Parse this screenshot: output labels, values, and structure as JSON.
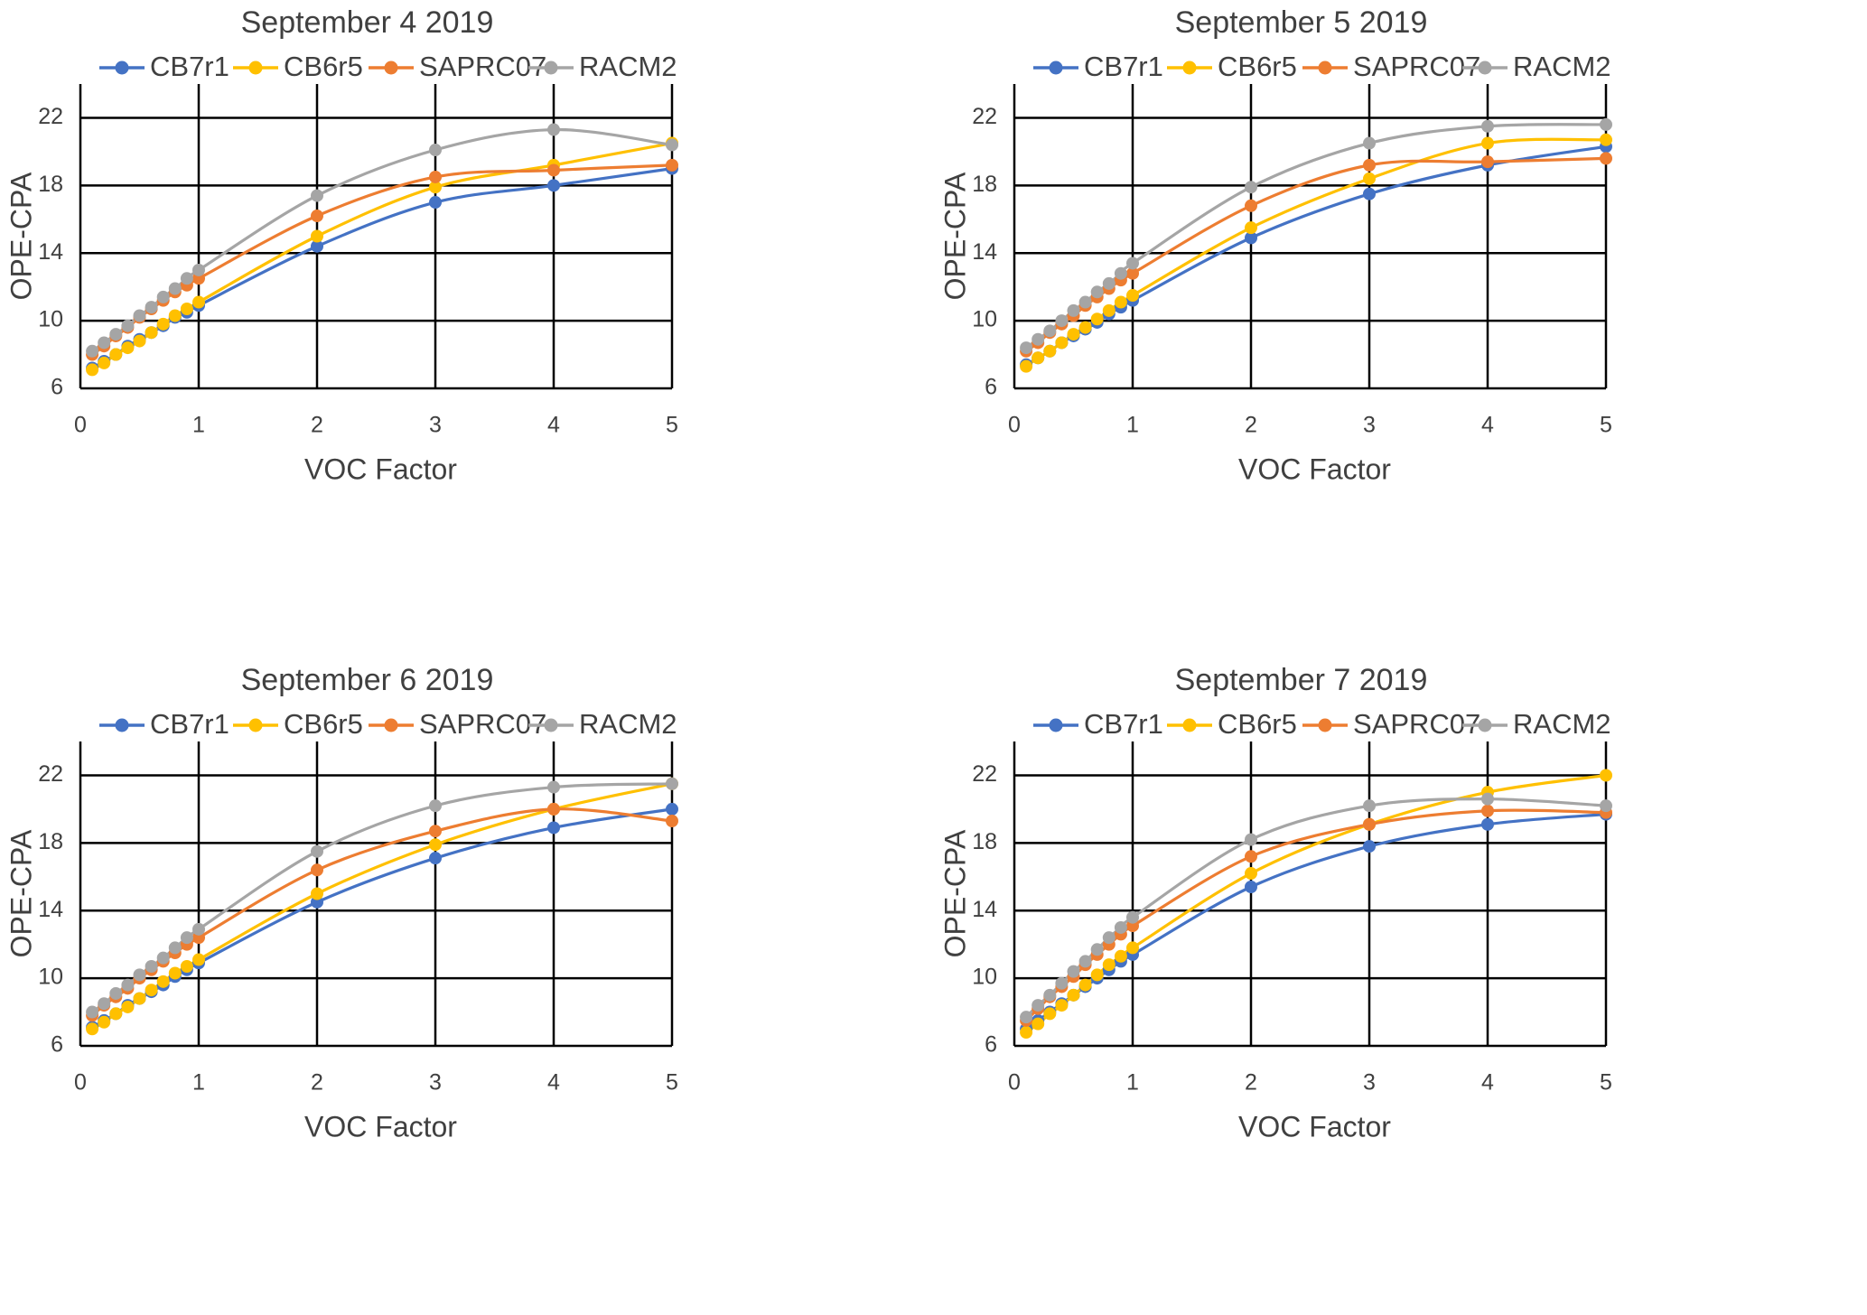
{
  "chart_data": [
    {
      "type": "line",
      "title": "September 4 2019",
      "xlabel": "VOC Factor",
      "ylabel": "OPE-CPA",
      "xlim": [
        0,
        5
      ],
      "ylim": [
        6,
        24
      ],
      "xticks": [
        0,
        1,
        2,
        3,
        4,
        5
      ],
      "yticks": [
        6,
        10,
        14,
        18,
        22
      ],
      "legend": "top",
      "grid": true,
      "x": [
        0.1,
        0.2,
        0.3,
        0.4,
        0.5,
        0.6,
        0.7,
        0.8,
        0.9,
        1,
        2,
        3,
        4,
        5
      ],
      "series": [
        {
          "name": "CB7r1",
          "color": "#4472C4",
          "values": [
            7.2,
            7.6,
            8.0,
            8.5,
            8.9,
            9.3,
            9.7,
            10.2,
            10.5,
            10.9,
            14.4,
            17.0,
            18.0,
            19.0
          ]
        },
        {
          "name": "CB6r5",
          "color": "#FFC000",
          "values": [
            7.1,
            7.5,
            8.0,
            8.4,
            8.8,
            9.3,
            9.8,
            10.3,
            10.7,
            11.1,
            15.0,
            17.9,
            19.2,
            20.5
          ]
        },
        {
          "name": "SAPRC07",
          "color": "#ED7D31",
          "values": [
            8.0,
            8.5,
            9.1,
            9.6,
            10.2,
            10.7,
            11.2,
            11.7,
            12.1,
            12.5,
            16.2,
            18.5,
            18.9,
            19.2
          ]
        },
        {
          "name": "RACM2",
          "color": "#A5A5A5",
          "values": [
            8.2,
            8.7,
            9.2,
            9.7,
            10.3,
            10.8,
            11.4,
            11.9,
            12.5,
            13.0,
            17.4,
            20.1,
            21.3,
            20.4
          ]
        }
      ]
    },
    {
      "type": "line",
      "title": "September 5 2019",
      "xlabel": "VOC Factor",
      "ylabel": "OPE-CPA",
      "xlim": [
        0,
        5
      ],
      "ylim": [
        6,
        24
      ],
      "xticks": [
        0,
        1,
        2,
        3,
        4,
        5
      ],
      "yticks": [
        6,
        10,
        14,
        18,
        22
      ],
      "legend": "top",
      "grid": true,
      "x": [
        0.1,
        0.2,
        0.3,
        0.4,
        0.5,
        0.6,
        0.7,
        0.8,
        0.9,
        1,
        2,
        3,
        4,
        5
      ],
      "series": [
        {
          "name": "CB7r1",
          "color": "#4472C4",
          "values": [
            7.4,
            7.8,
            8.2,
            8.7,
            9.1,
            9.5,
            9.9,
            10.4,
            10.8,
            11.2,
            14.9,
            17.5,
            19.2,
            20.3
          ]
        },
        {
          "name": "CB6r5",
          "color": "#FFC000",
          "values": [
            7.3,
            7.8,
            8.2,
            8.7,
            9.2,
            9.6,
            10.1,
            10.6,
            11.1,
            11.5,
            15.5,
            18.4,
            20.5,
            20.7
          ]
        },
        {
          "name": "SAPRC07",
          "color": "#ED7D31",
          "values": [
            8.2,
            8.7,
            9.3,
            9.8,
            10.3,
            10.9,
            11.4,
            11.9,
            12.4,
            12.8,
            16.8,
            19.2,
            19.4,
            19.6
          ]
        },
        {
          "name": "RACM2",
          "color": "#A5A5A5",
          "values": [
            8.4,
            8.9,
            9.4,
            10.0,
            10.6,
            11.1,
            11.7,
            12.2,
            12.8,
            13.4,
            17.9,
            20.5,
            21.5,
            21.6
          ]
        }
      ]
    },
    {
      "type": "line",
      "title": "September 6 2019",
      "xlabel": "VOC Factor",
      "ylabel": "OPE-CPA",
      "xlim": [
        0,
        5
      ],
      "ylim": [
        6,
        24
      ],
      "xticks": [
        0,
        1,
        2,
        3,
        4,
        5
      ],
      "yticks": [
        6,
        10,
        14,
        18,
        22
      ],
      "legend": "top",
      "grid": true,
      "x": [
        0.1,
        0.2,
        0.3,
        0.4,
        0.5,
        0.6,
        0.7,
        0.8,
        0.9,
        1,
        2,
        3,
        4,
        5
      ],
      "series": [
        {
          "name": "CB7r1",
          "color": "#4472C4",
          "values": [
            7.1,
            7.5,
            7.9,
            8.4,
            8.8,
            9.2,
            9.6,
            10.1,
            10.5,
            10.9,
            14.5,
            17.1,
            18.9,
            20.0
          ]
        },
        {
          "name": "CB6r5",
          "color": "#FFC000",
          "values": [
            7.0,
            7.4,
            7.9,
            8.3,
            8.8,
            9.3,
            9.8,
            10.3,
            10.7,
            11.1,
            15.0,
            17.9,
            20.0,
            21.5
          ]
        },
        {
          "name": "SAPRC07",
          "color": "#ED7D31",
          "values": [
            7.8,
            8.4,
            8.9,
            9.4,
            10.0,
            10.5,
            11.0,
            11.5,
            12.0,
            12.4,
            16.4,
            18.7,
            20.0,
            19.3
          ]
        },
        {
          "name": "RACM2",
          "color": "#A5A5A5",
          "values": [
            8.0,
            8.5,
            9.1,
            9.6,
            10.2,
            10.7,
            11.2,
            11.8,
            12.4,
            12.9,
            17.5,
            20.2,
            21.3,
            21.5
          ]
        }
      ]
    },
    {
      "type": "line",
      "title": "September 7 2019",
      "xlabel": "VOC Factor",
      "ylabel": "OPE-CPA",
      "xlim": [
        0,
        5
      ],
      "ylim": [
        6,
        24
      ],
      "xticks": [
        0,
        1,
        2,
        3,
        4,
        5
      ],
      "yticks": [
        6,
        10,
        14,
        18,
        22
      ],
      "legend": "top",
      "grid": true,
      "x": [
        0.1,
        0.2,
        0.3,
        0.4,
        0.5,
        0.6,
        0.7,
        0.8,
        0.9,
        1,
        2,
        3,
        4,
        5
      ],
      "series": [
        {
          "name": "CB7r1",
          "color": "#4472C4",
          "values": [
            7.0,
            7.5,
            8.0,
            8.5,
            9.0,
            9.5,
            10.0,
            10.5,
            11.0,
            11.4,
            15.4,
            17.8,
            19.1,
            19.7
          ]
        },
        {
          "name": "CB6r5",
          "color": "#FFC000",
          "values": [
            6.8,
            7.3,
            7.9,
            8.4,
            9.0,
            9.6,
            10.2,
            10.8,
            11.3,
            11.8,
            16.2,
            19.1,
            21.0,
            22.0
          ]
        },
        {
          "name": "SAPRC07",
          "color": "#ED7D31",
          "values": [
            7.5,
            8.2,
            8.9,
            9.5,
            10.1,
            10.8,
            11.4,
            12.0,
            12.6,
            13.1,
            17.2,
            19.1,
            19.9,
            19.8
          ]
        },
        {
          "name": "RACM2",
          "color": "#A5A5A5",
          "values": [
            7.7,
            8.4,
            9.0,
            9.7,
            10.4,
            11.0,
            11.7,
            12.4,
            13.0,
            13.6,
            18.2,
            20.2,
            20.6,
            20.2
          ]
        }
      ]
    }
  ]
}
